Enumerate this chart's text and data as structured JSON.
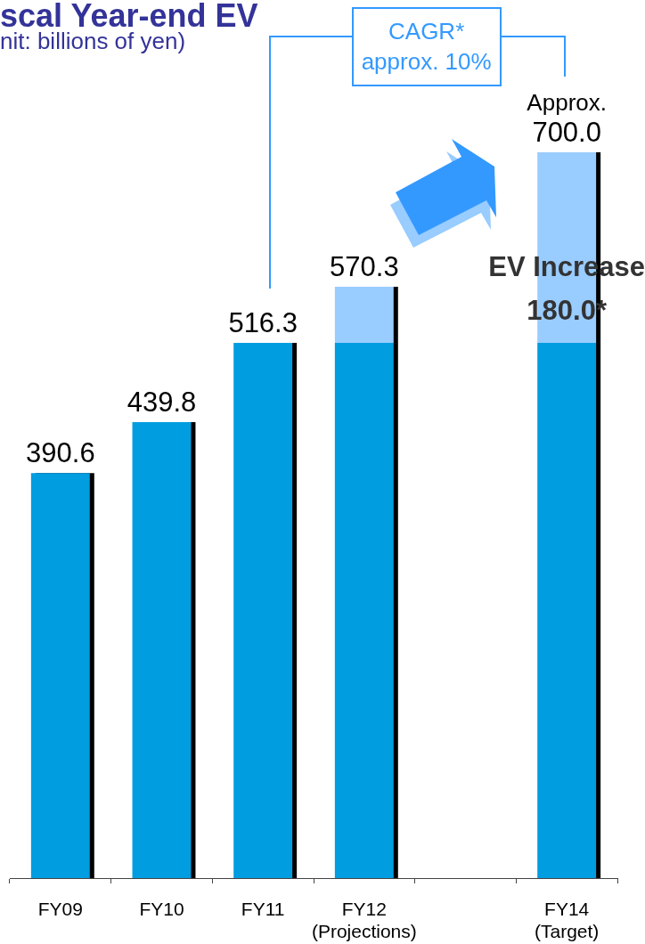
{
  "chart_data": {
    "type": "bar",
    "title": "scal Year-end EV",
    "subtitle": "nit: billions of yen)",
    "categories": [
      "FY09",
      "FY10",
      "FY11",
      "FY12\n(Projections)",
      null,
      "FY14\n(Target)"
    ],
    "series": [
      {
        "color": "#009de0",
        "values": [
          390.6,
          439.8,
          516.3,
          516.3,
          null,
          516.3
        ],
        "value_labels": [
          "390.6",
          "439.8",
          "516.3",
          null,
          null,
          null
        ]
      },
      {
        "color": "#99ccff",
        "values": [
          null,
          null,
          null,
          54.0,
          null,
          183.7
        ]
      }
    ],
    "stacked": true,
    "tick_labels": "x",
    "totals": [
      null,
      null,
      null,
      "570.3",
      null,
      "Approx.\n700.0"
    ],
    "annotations": [
      "CAGR*\napprox. 10%",
      "EV Increase\n180.0*"
    ]
  }
}
